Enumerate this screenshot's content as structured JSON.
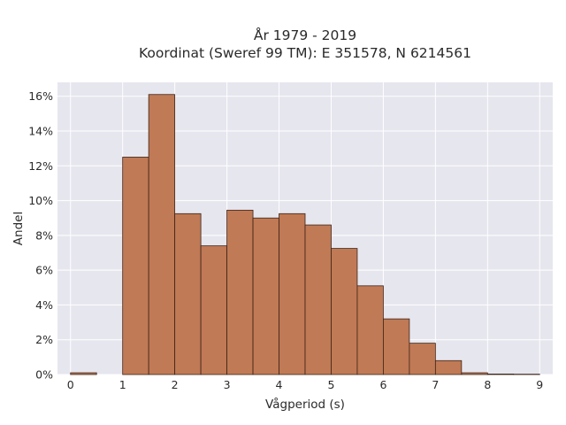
{
  "chart_data": {
    "type": "bar",
    "title_line1": "År 1979 - 2019",
    "title_line2": "Koordinat (Sweref 99 TM): E 351578, N 6214561",
    "xlabel": "Vågperiod (s)",
    "ylabel": "Andel",
    "xlim": [
      -0.25,
      9.25
    ],
    "ylim": [
      0,
      16.8
    ],
    "x_ticks": [
      0,
      1,
      2,
      3,
      4,
      5,
      6,
      7,
      8,
      9
    ],
    "y_ticks": [
      0,
      2,
      4,
      6,
      8,
      10,
      12,
      14,
      16
    ],
    "y_tick_suffix": "%",
    "bin_width": 0.5,
    "bins": [
      {
        "x0": 0.0,
        "value": 0.1
      },
      {
        "x0": 0.5,
        "value": 0.0
      },
      {
        "x0": 1.0,
        "value": 12.5
      },
      {
        "x0": 1.5,
        "value": 16.1
      },
      {
        "x0": 2.0,
        "value": 9.25
      },
      {
        "x0": 2.5,
        "value": 7.4
      },
      {
        "x0": 3.0,
        "value": 9.45
      },
      {
        "x0": 3.5,
        "value": 9.0
      },
      {
        "x0": 4.0,
        "value": 9.25
      },
      {
        "x0": 4.5,
        "value": 8.6
      },
      {
        "x0": 5.0,
        "value": 7.25
      },
      {
        "x0": 5.5,
        "value": 5.1
      },
      {
        "x0": 6.0,
        "value": 3.2
      },
      {
        "x0": 6.5,
        "value": 1.8
      },
      {
        "x0": 7.0,
        "value": 0.8
      },
      {
        "x0": 7.5,
        "value": 0.1
      },
      {
        "x0": 8.0,
        "value": 0.03
      },
      {
        "x0": 8.5,
        "value": 0.02
      }
    ],
    "grid": true,
    "bar_color": "#c07a55",
    "bar_edge_color": "#3d2418",
    "background_color": "#e6e6ef"
  }
}
